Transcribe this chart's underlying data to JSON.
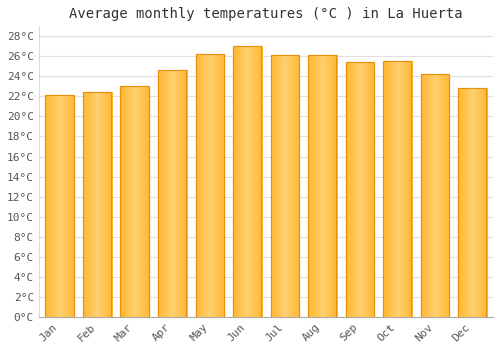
{
  "title": "Average monthly temperatures (°C ) in La Huerta",
  "months": [
    "Jan",
    "Feb",
    "Mar",
    "Apr",
    "May",
    "Jun",
    "Jul",
    "Aug",
    "Sep",
    "Oct",
    "Nov",
    "Dec"
  ],
  "values": [
    22.1,
    22.4,
    23.0,
    24.6,
    26.2,
    27.0,
    26.1,
    26.1,
    25.4,
    25.5,
    24.2,
    22.8
  ],
  "bar_color_center": "#FFB732",
  "bar_color_edge": "#E8900A",
  "bar_color_light": "#FFD070",
  "ylim": [
    0,
    29
  ],
  "yticks": [
    0,
    2,
    4,
    6,
    8,
    10,
    12,
    14,
    16,
    18,
    20,
    22,
    24,
    26,
    28
  ],
  "background_color": "#ffffff",
  "grid_color": "#e0e0e0",
  "title_fontsize": 10,
  "tick_fontsize": 8,
  "bar_width": 0.75
}
